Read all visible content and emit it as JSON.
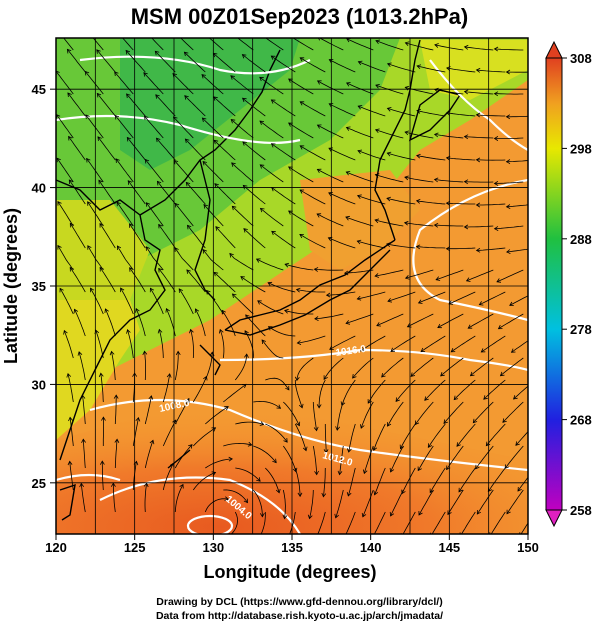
{
  "title": "MSM 00Z01Sep2023 (1013.2hPa)",
  "axes": {
    "xlabel": "Longitude (degrees)",
    "ylabel": "Latitude  (degrees)",
    "x_ticks": [
      "120",
      "125",
      "130",
      "135",
      "140",
      "145",
      "150"
    ],
    "y_ticks": [
      "25",
      "30",
      "35",
      "40",
      "45"
    ],
    "xlim": [
      120,
      150
    ],
    "ylim": [
      22.4,
      47.6
    ]
  },
  "colorbar": {
    "ticks": [
      "258",
      "268",
      "278",
      "288",
      "298",
      "308"
    ],
    "range": [
      258,
      308
    ],
    "colors": [
      "#c000c0",
      "#2020e0",
      "#00c0e0",
      "#20c040",
      "#e8e800",
      "#f0a020",
      "#e04020"
    ]
  },
  "contour_labels": [
    "1016.0",
    "1012.0",
    "1008.0",
    "1004.0"
  ],
  "credits": {
    "line1": "Drawing by DCL (https://www.gfd-dennou.org/library/dcl/)",
    "line2": "Data from http://database.rish.kyoto-u.ac.jp/arch/jmadata/"
  }
}
